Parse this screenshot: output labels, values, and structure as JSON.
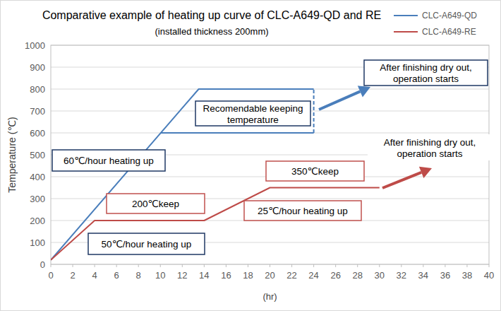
{
  "chart_data": {
    "type": "line",
    "title": "Comparative example of heating up curve of CLC-A649-QD and RE",
    "subtitle": "(installed thickness 200mm)",
    "x_label": "(hr)",
    "y_label": "Temperature (℃)",
    "xlim": [
      0,
      40
    ],
    "xticks": [
      0,
      2,
      4,
      6,
      8,
      10,
      12,
      14,
      16,
      18,
      20,
      22,
      24,
      26,
      28,
      30,
      32,
      34,
      36,
      38,
      40
    ],
    "ylim": [
      0,
      1000
    ],
    "yticks": [
      0,
      100,
      200,
      300,
      400,
      500,
      600,
      700,
      800,
      900,
      1000
    ],
    "grid": true,
    "legend": "upper right",
    "series": [
      {
        "name": "CLC-A649-QD",
        "color": "#4a7ebb",
        "x": [
          0,
          13.5,
          24
        ],
        "values": [
          20,
          800,
          800
        ]
      },
      {
        "name": "CLC-A649-RE",
        "color": "#be4b48",
        "x": [
          0,
          4,
          14,
          20,
          30
        ],
        "values": [
          20,
          200,
          200,
          350,
          350
        ]
      }
    ],
    "reference_lines": [
      {
        "x": [
          10,
          24
        ],
        "values": [
          600,
          600
        ],
        "color": "#4a7ebb",
        "line_style": "solid"
      },
      {
        "x": [
          24,
          24
        ],
        "values": [
          600,
          800
        ],
        "color": "#4a7ebb",
        "line_style": "dashed"
      }
    ],
    "annotations": [
      {
        "lines": [
          "60℃/hour heating up"
        ],
        "color": "#1f3864"
      },
      {
        "lines": [
          "Recomendable keeping",
          "temperature"
        ],
        "color": "#1f3864"
      },
      {
        "lines": [
          "After finishing dry out,",
          "operation starts"
        ],
        "color": "#1f3864"
      },
      {
        "lines": [
          "200℃keep"
        ],
        "color": "#c0504d"
      },
      {
        "lines": [
          "50℃/hour heating up"
        ],
        "color": "#1f3864"
      },
      {
        "lines": [
          "350℃keep"
        ],
        "color": "#c0504d"
      },
      {
        "lines": [
          "25℃/hour heating up"
        ],
        "color": "#c0504d"
      },
      {
        "lines": [
          "After finishing dry out,",
          "operation starts"
        ],
        "color": "#1f3864"
      }
    ]
  }
}
